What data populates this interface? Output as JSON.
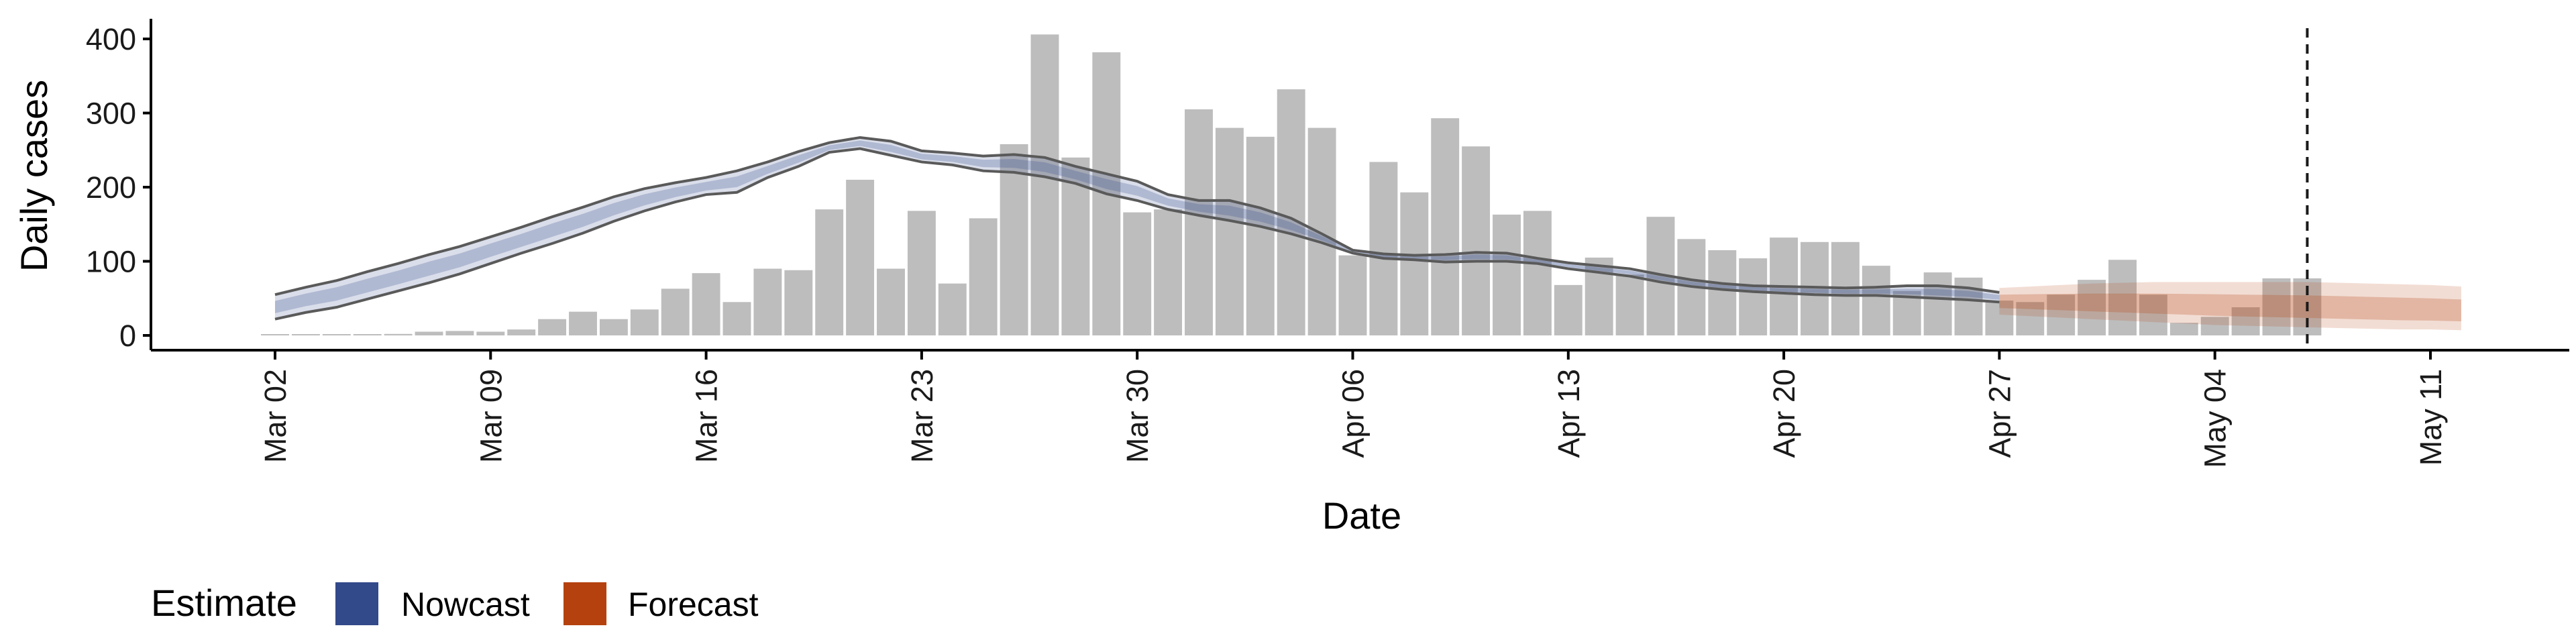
{
  "chart_data": {
    "type": "bar",
    "xlabel": "Date",
    "ylabel": "Daily cases",
    "ylim": [
      0,
      430
    ],
    "y_ticks": [
      0,
      100,
      200,
      300,
      400
    ],
    "x_ticks": [
      "Mar 02",
      "Mar 09",
      "Mar 16",
      "Mar 23",
      "Mar 30",
      "Apr 06",
      "Apr 13",
      "Apr 20",
      "Apr 27",
      "May 04",
      "May 11"
    ],
    "x_tick_day_index": [
      0,
      7,
      14,
      21,
      28,
      35,
      42,
      49,
      56,
      63,
      70
    ],
    "date_of_first_bar": "Mar 02",
    "grid": false,
    "bar_color": "#bdbdbd",
    "cases": [
      1,
      0,
      0,
      1,
      2,
      5,
      6,
      5,
      8,
      22,
      32,
      22,
      35,
      63,
      84,
      45,
      90,
      88,
      170,
      210,
      90,
      168,
      70,
      158,
      258,
      406,
      240,
      382,
      166,
      170,
      305,
      280,
      268,
      332,
      280,
      108,
      234,
      193,
      293,
      255,
      163,
      168,
      68,
      105,
      82,
      160,
      130,
      115,
      104,
      132,
      126,
      126,
      94,
      60,
      85,
      78,
      47,
      45,
      55,
      75,
      102,
      55,
      17,
      25,
      38,
      77,
      77
    ],
    "series": [
      {
        "name": "Nowcast",
        "color": "#334a8a",
        "x_day": [
          0,
          1,
          2,
          3,
          4,
          5,
          6,
          7,
          8,
          9,
          10,
          11,
          12,
          13,
          14,
          15,
          16,
          17,
          18,
          19,
          20,
          21,
          22,
          23,
          24,
          25,
          26,
          27,
          28,
          29,
          30,
          31,
          32,
          33,
          34,
          35,
          36,
          37,
          38,
          39,
          40,
          41,
          42,
          43,
          44,
          45,
          46,
          47,
          48,
          49,
          50,
          51,
          52,
          53,
          54,
          55,
          56
        ],
        "lower": [
          22,
          31,
          38,
          49,
          60,
          71,
          83,
          97,
          111,
          124,
          138,
          154,
          168,
          180,
          190,
          193,
          213,
          228,
          247,
          252,
          243,
          234,
          230,
          222,
          220,
          214,
          205,
          191,
          182,
          170,
          162,
          155,
          147,
          137,
          125,
          111,
          104,
          102,
          99,
          100,
          100,
          97,
          90,
          85,
          80,
          72,
          66,
          62,
          59,
          57,
          55,
          54,
          54,
          52,
          50,
          48,
          45
        ],
        "upper": [
          55,
          65,
          74,
          86,
          97,
          109,
          120,
          133,
          146,
          160,
          173,
          187,
          198,
          206,
          213,
          222,
          234,
          248,
          260,
          267,
          262,
          249,
          246,
          242,
          244,
          240,
          228,
          218,
          208,
          190,
          182,
          182,
          172,
          158,
          137,
          115,
          110,
          108,
          109,
          112,
          111,
          104,
          98,
          94,
          90,
          82,
          75,
          70,
          67,
          66,
          65,
          64,
          65,
          67,
          67,
          64,
          58
        ],
        "median": [
          38,
          48,
          56,
          67,
          78,
          90,
          101,
          115,
          128,
          142,
          155,
          170,
          183,
          193,
          201,
          207,
          223,
          238,
          253,
          259,
          252,
          241,
          238,
          232,
          232,
          227,
          216,
          204,
          195,
          180,
          172,
          168,
          160,
          147,
          131,
          113,
          107,
          105,
          104,
          106,
          105,
          100,
          94,
          89,
          85,
          77,
          70,
          66,
          63,
          61,
          60,
          59,
          59,
          59,
          58,
          56,
          51
        ]
      },
      {
        "name": "Forecast",
        "color": "#b5420e",
        "x_day": [
          56,
          57,
          58,
          59,
          60,
          61,
          62,
          63,
          64,
          65,
          66,
          67,
          68,
          69,
          70,
          71
        ],
        "lower": [
          28,
          26,
          24,
          22,
          20,
          18,
          16,
          14,
          13,
          12,
          11,
          10,
          9,
          8,
          8,
          7
        ],
        "upper": [
          64,
          66,
          68,
          70,
          71,
          72,
          72,
          72,
          72,
          72,
          72,
          71,
          70,
          69,
          68,
          66
        ],
        "median": [
          46,
          45,
          44,
          43,
          42,
          41,
          40,
          39,
          38,
          37,
          36,
          35,
          34,
          33,
          32,
          31
        ]
      }
    ],
    "vline_day": 66,
    "legend": {
      "title": "Estimate",
      "placement": "bottom-left",
      "items": [
        {
          "label": "Nowcast",
          "color": "#334a8a"
        },
        {
          "label": "Forecast",
          "color": "#b5420e"
        }
      ]
    }
  }
}
